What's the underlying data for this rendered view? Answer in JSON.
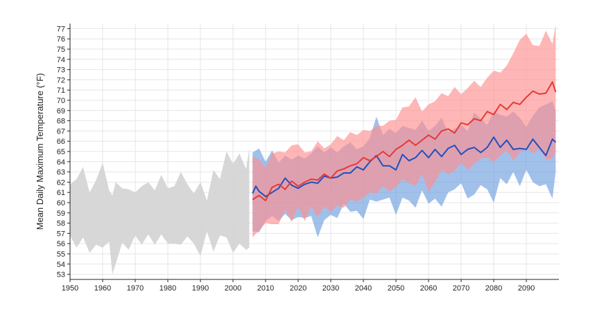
{
  "chart_data": {
    "type": "area",
    "title": "",
    "xlabel": "",
    "ylabel": "Mean Daily Maximum Temperature (°F)",
    "xlim": [
      1950,
      2100
    ],
    "ylim": [
      52.5,
      77.5
    ],
    "x_ticks": [
      1950,
      1960,
      1970,
      1980,
      1990,
      2000,
      2010,
      2020,
      2030,
      2040,
      2050,
      2060,
      2070,
      2080,
      2090
    ],
    "y_ticks": [
      53,
      54,
      55,
      56,
      57,
      58,
      59,
      60,
      61,
      62,
      63,
      64,
      65,
      66,
      67,
      68,
      69,
      70,
      71,
      72,
      73,
      74,
      75,
      76,
      77
    ],
    "grid": true,
    "legend": "none",
    "colors": {
      "historical_band": "#d3d3d3",
      "low_band": "#6fa0e0",
      "high_band": "#ff8f8f",
      "low_line": "#1f4fbf",
      "high_line": "#e53935"
    },
    "series": [
      {
        "kind": "band",
        "color_key": "historical_band",
        "x": [
          1950,
          1952,
          1954,
          1956,
          1958,
          1960,
          1962,
          1963,
          1964,
          1966,
          1968,
          1970,
          1972,
          1974,
          1976,
          1978,
          1980,
          1982,
          1984,
          1986,
          1988,
          1990,
          1992,
          1994,
          1996,
          1998,
          2000,
          2002,
          2004,
          2005
        ],
        "upper": [
          61.8,
          62.3,
          63.5,
          61.0,
          62.2,
          63.9,
          61.2,
          60.7,
          62.0,
          61.4,
          61.3,
          61.0,
          61.6,
          62.0,
          61.2,
          62.7,
          61.4,
          61.6,
          63.0,
          61.8,
          60.9,
          62.0,
          60.2,
          63.2,
          62.3,
          65.0,
          63.8,
          64.8,
          63.3,
          65.3
        ],
        "lower": [
          56.8,
          55.6,
          56.6,
          55.1,
          55.9,
          55.6,
          56.2,
          53.0,
          54.0,
          56.1,
          55.4,
          56.8,
          55.9,
          56.9,
          55.9,
          56.9,
          56.0,
          56.0,
          55.9,
          56.7,
          56.0,
          54.8,
          57.2,
          55.2,
          56.8,
          56.6,
          55.1,
          56.0,
          55.4,
          55.6
        ]
      },
      {
        "kind": "band",
        "color_key": "low_band",
        "x": [
          2006,
          2008,
          2010,
          2012,
          2014,
          2016,
          2018,
          2020,
          2022,
          2024,
          2026,
          2028,
          2030,
          2032,
          2034,
          2036,
          2038,
          2040,
          2042,
          2044,
          2046,
          2048,
          2050,
          2052,
          2054,
          2056,
          2058,
          2060,
          2062,
          2064,
          2066,
          2068,
          2070,
          2072,
          2074,
          2076,
          2078,
          2080,
          2082,
          2084,
          2086,
          2088,
          2090,
          2092,
          2094,
          2096,
          2098,
          2099
        ],
        "upper": [
          64.9,
          65.3,
          64.0,
          65.1,
          63.9,
          64.6,
          64.2,
          64.6,
          64.3,
          64.8,
          65.5,
          64.9,
          65.4,
          64.9,
          65.5,
          65.9,
          65.2,
          65.5,
          66.3,
          68.4,
          66.6,
          67.2,
          66.8,
          67.5,
          67.3,
          67.1,
          68.0,
          67.0,
          67.5,
          68.3,
          66.9,
          67.2,
          67.6,
          67.0,
          68.8,
          68.2,
          67.6,
          68.9,
          68.6,
          68.4,
          68.9,
          68.3,
          67.4,
          68.5,
          69.3,
          69.6,
          69.9,
          69.0
        ],
        "lower": [
          57.2,
          57.1,
          58.2,
          58.7,
          58.2,
          58.9,
          58.3,
          58.6,
          58.5,
          58.7,
          56.6,
          58.3,
          58.8,
          58.5,
          59.9,
          59.1,
          59.2,
          58.4,
          60.3,
          60.1,
          60.3,
          60.5,
          58.8,
          60.5,
          60.2,
          59.5,
          61.2,
          59.9,
          60.4,
          59.6,
          61.0,
          61.3,
          61.9,
          60.4,
          60.8,
          61.7,
          61.3,
          60.0,
          62.4,
          61.8,
          63.0,
          61.6,
          63.2,
          62.0,
          61.6,
          61.8,
          60.4,
          63.0
        ]
      },
      {
        "kind": "band",
        "color_key": "high_band",
        "x": [
          2006,
          2008,
          2010,
          2012,
          2014,
          2016,
          2018,
          2020,
          2022,
          2024,
          2026,
          2028,
          2030,
          2032,
          2034,
          2036,
          2038,
          2040,
          2042,
          2044,
          2046,
          2048,
          2050,
          2052,
          2054,
          2056,
          2058,
          2060,
          2062,
          2064,
          2066,
          2068,
          2070,
          2072,
          2074,
          2076,
          2078,
          2080,
          2082,
          2084,
          2086,
          2088,
          2090,
          2092,
          2094,
          2096,
          2098,
          2099
        ],
        "upper": [
          64.5,
          64.2,
          63.4,
          64.8,
          65.0,
          64.9,
          65.6,
          65.7,
          64.9,
          65.0,
          66.0,
          65.3,
          65.7,
          66.5,
          66.1,
          66.9,
          66.6,
          67.1,
          67.0,
          67.5,
          67.5,
          68.0,
          68.1,
          69.3,
          69.4,
          70.3,
          68.9,
          69.6,
          69.9,
          70.7,
          70.4,
          71.3,
          70.6,
          71.2,
          71.9,
          71.3,
          72.2,
          72.9,
          72.7,
          73.4,
          74.6,
          75.9,
          76.5,
          75.4,
          75.3,
          76.8,
          75.5,
          77.4
        ],
        "lower": [
          56.6,
          57.3,
          58.0,
          57.9,
          57.9,
          59.3,
          58.1,
          59.6,
          58.2,
          59.6,
          58.6,
          59.6,
          59.1,
          59.7,
          59.5,
          60.3,
          60.1,
          60.5,
          61.0,
          60.9,
          61.6,
          61.1,
          61.5,
          62.3,
          61.9,
          61.6,
          62.8,
          61.1,
          62.0,
          63.2,
          62.8,
          63.1,
          63.9,
          63.2,
          63.8,
          64.3,
          64.4,
          64.0,
          64.6,
          65.1,
          64.1,
          64.9,
          65.4,
          64.8,
          65.3,
          64.2,
          64.3,
          65.0
        ]
      },
      {
        "kind": "line",
        "color_key": "low_line",
        "x": [
          2006,
          2007,
          2008,
          2010,
          2012,
          2014,
          2016,
          2018,
          2020,
          2022,
          2024,
          2026,
          2028,
          2030,
          2032,
          2034,
          2036,
          2038,
          2040,
          2042,
          2044,
          2046,
          2048,
          2050,
          2052,
          2054,
          2056,
          2058,
          2060,
          2062,
          2064,
          2066,
          2068,
          2070,
          2072,
          2074,
          2076,
          2078,
          2080,
          2082,
          2084,
          2086,
          2088,
          2090,
          2092,
          2094,
          2096,
          2098,
          2099
        ],
        "y": [
          60.9,
          61.6,
          61.1,
          60.6,
          61.0,
          61.4,
          62.4,
          61.7,
          61.4,
          61.8,
          62.0,
          61.9,
          62.6,
          62.4,
          62.5,
          62.9,
          62.9,
          63.5,
          63.2,
          64.0,
          64.6,
          63.6,
          63.6,
          63.2,
          64.7,
          64.1,
          64.4,
          65.1,
          64.4,
          65.2,
          64.5,
          65.3,
          65.6,
          64.7,
          65.2,
          65.4,
          64.9,
          65.4,
          66.4,
          65.4,
          66.1,
          65.2,
          65.3,
          65.2,
          66.2,
          65.4,
          64.6,
          66.2,
          65.9
        ]
      },
      {
        "kind": "line",
        "color_key": "high_line",
        "x": [
          2006,
          2008,
          2010,
          2012,
          2014,
          2016,
          2018,
          2020,
          2022,
          2024,
          2026,
          2028,
          2030,
          2032,
          2034,
          2036,
          2038,
          2040,
          2042,
          2044,
          2046,
          2048,
          2050,
          2052,
          2054,
          2056,
          2058,
          2060,
          2062,
          2064,
          2066,
          2068,
          2070,
          2072,
          2074,
          2076,
          2078,
          2080,
          2082,
          2084,
          2086,
          2088,
          2090,
          2092,
          2094,
          2096,
          2098,
          2099
        ],
        "y": [
          60.3,
          60.7,
          60.2,
          61.5,
          61.8,
          61.3,
          62.1,
          61.6,
          62.0,
          62.3,
          62.2,
          62.8,
          62.4,
          63.1,
          63.3,
          63.6,
          63.8,
          64.4,
          64.1,
          64.5,
          65.0,
          64.5,
          65.2,
          65.6,
          66.1,
          65.6,
          66.1,
          66.6,
          66.2,
          67.0,
          67.2,
          66.8,
          67.8,
          67.6,
          68.2,
          68.0,
          68.9,
          68.6,
          69.6,
          69.1,
          69.8,
          69.6,
          70.3,
          70.9,
          70.6,
          70.7,
          71.8,
          70.8
        ]
      }
    ]
  }
}
